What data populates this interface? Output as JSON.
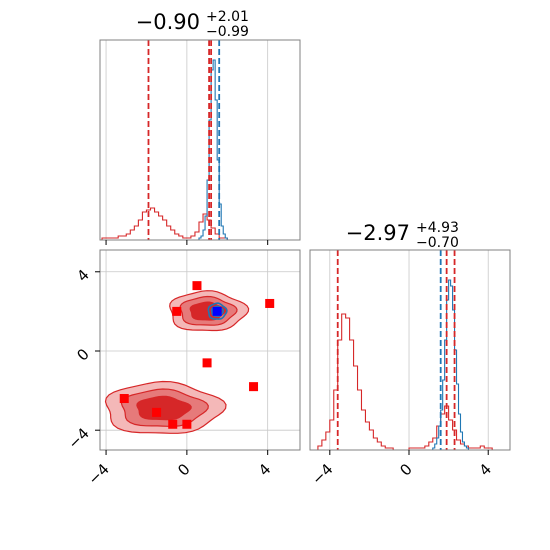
{
  "colors": {
    "red": "#d62728",
    "blue": "#1f77b4",
    "marker_red": "#ff0000",
    "marker_blue": "#0000ff",
    "fill_light": "#f4b8b8",
    "fill_mid": "#e67a7a",
    "fill_dark": "#d62728"
  },
  "chart_data": [
    {
      "type": "histogram",
      "panel": "marginal-x",
      "title": {
        "value": "−0.90",
        "upper": "+2.01",
        "lower": "−0.99"
      },
      "xlim": [
        -4.3,
        5.6
      ],
      "ylim": [
        0,
        1.0
      ],
      "xticks": [
        -4,
        0,
        4
      ],
      "grid": true,
      "series": [
        {
          "color": "red",
          "bins": {
            "start": -4.2,
            "width": 0.2,
            "counts": [
              0.01,
              0.01,
              0.01,
              0.01,
              0.02,
              0.02,
              0.03,
              0.05,
              0.07,
              0.1,
              0.14,
              0.15,
              0.16,
              0.14,
              0.12,
              0.1,
              0.07,
              0.05,
              0.03,
              0.02,
              0.01,
              0.01,
              0.02,
              0.04,
              0.09,
              0.13,
              0.1,
              0.06,
              0.03,
              0.01,
              0.01
            ]
          }
        },
        {
          "color": "blue",
          "bins": {
            "start": 0.6,
            "width": 0.1,
            "counts": [
              0.01,
              0.02,
              0.05,
              0.12,
              0.3,
              0.6,
              0.85,
              0.9,
              0.7,
              0.4,
              0.18,
              0.07,
              0.03,
              0.01
            ]
          }
        }
      ],
      "vlines": [
        {
          "x": -1.9,
          "color": "red"
        },
        {
          "x": 1.1,
          "color": "red"
        },
        {
          "x": 1.2,
          "color": "red"
        },
        {
          "x": 1.6,
          "color": "blue"
        }
      ]
    },
    {
      "type": "contour",
      "panel": "joint",
      "xlim": [
        -4.3,
        5.6
      ],
      "ylim": [
        -5.0,
        5.1
      ],
      "xticks": [
        -4,
        0,
        4
      ],
      "yticks": [
        -4,
        0,
        4
      ],
      "grid": true,
      "blobs": [
        {
          "center": [
            1.0,
            2.0
          ],
          "radii": [
            1.9,
            1.0
          ],
          "levels": [
            1.0,
            0.72,
            0.45
          ]
        },
        {
          "center": [
            -1.2,
            -2.9
          ],
          "radii": [
            2.9,
            1.3
          ],
          "levels": [
            1.0,
            0.72,
            0.45
          ]
        }
      ],
      "blue_contours": [
        {
          "center": [
            1.5,
            2.0
          ],
          "radii": [
            0.45,
            0.4
          ]
        },
        {
          "center": [
            1.5,
            2.0
          ],
          "radii": [
            0.28,
            0.25
          ]
        }
      ],
      "markers_red": [
        [
          0.5,
          3.3
        ],
        [
          -0.5,
          2.0
        ],
        [
          4.1,
          2.4
        ],
        [
          1.0,
          -0.6
        ],
        [
          3.3,
          -1.8
        ],
        [
          -3.1,
          -2.4
        ],
        [
          -1.5,
          -3.1
        ],
        [
          -0.7,
          -3.7
        ],
        [
          0.0,
          -3.7
        ]
      ],
      "markers_blue": [
        [
          1.5,
          2.0
        ]
      ]
    },
    {
      "type": "histogram",
      "panel": "marginal-y",
      "title": {
        "value": "−2.97",
        "upper": "+4.93",
        "lower": "−0.70"
      },
      "xlim": [
        -5.0,
        5.1
      ],
      "ylim": [
        0,
        1.0
      ],
      "xticks": [
        -4,
        0,
        4
      ],
      "grid": true,
      "series": [
        {
          "color": "red",
          "bins": {
            "start": -4.6,
            "width": 0.2,
            "counts": [
              0.02,
              0.05,
              0.09,
              0.15,
              0.3,
              0.55,
              0.68,
              0.66,
              0.55,
              0.42,
              0.3,
              0.2,
              0.14,
              0.1,
              0.06,
              0.04,
              0.02,
              0.01,
              0.01,
              0.0,
              0.0,
              0.0,
              0.0,
              0.01,
              0.01,
              0.01,
              0.01,
              0.02,
              0.04,
              0.06,
              0.12,
              0.18,
              0.22,
              0.15,
              0.1,
              0.05,
              0.03,
              0.02,
              0.01,
              0.01,
              0.01,
              0.02,
              0.01,
              0.01
            ]
          }
        },
        {
          "color": "blue",
          "bins": {
            "start": 1.2,
            "width": 0.1,
            "counts": [
              0.01,
              0.03,
              0.06,
              0.12,
              0.2,
              0.35,
              0.55,
              0.75,
              0.85,
              0.82,
              0.7,
              0.5,
              0.33,
              0.18,
              0.09,
              0.04,
              0.02,
              0.01
            ]
          }
        }
      ],
      "vlines": [
        {
          "x": -3.6,
          "color": "red"
        },
        {
          "x": 1.9,
          "color": "red"
        },
        {
          "x": 2.3,
          "color": "red"
        },
        {
          "x": 1.6,
          "color": "blue"
        }
      ]
    }
  ]
}
